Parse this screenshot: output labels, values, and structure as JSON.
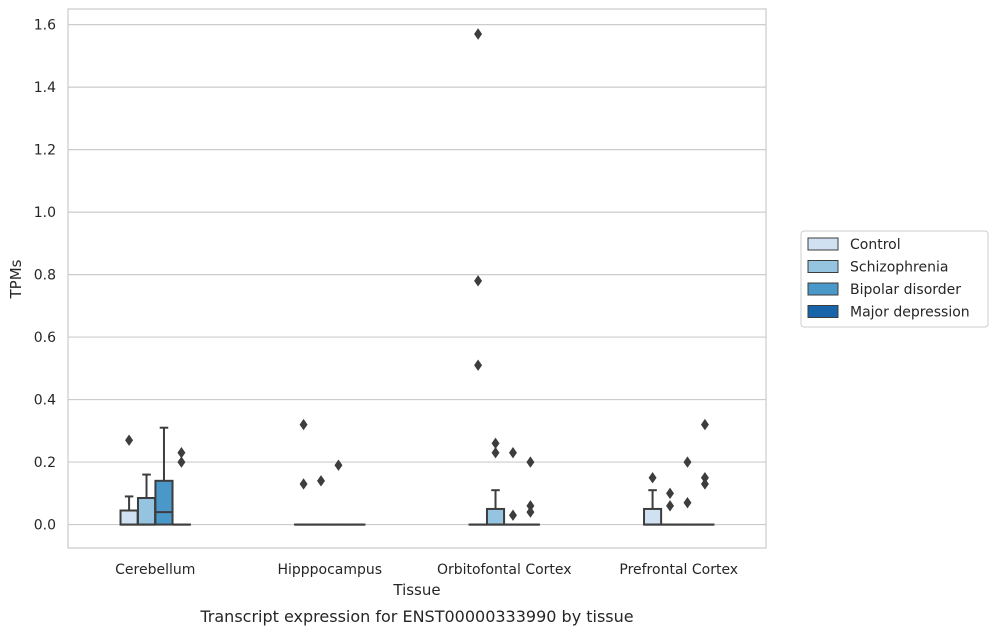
{
  "chart_data": {
    "type": "box",
    "title": "Transcript expression for ENST00000333990 by tissue",
    "xlabel": "Tissue",
    "ylabel": "TPMs",
    "categories": [
      "Cerebellum",
      "Hipppocampus",
      "Orbitofontal Cortex",
      "Prefrontal Cortex"
    ],
    "ylim": [
      -0.075,
      1.65
    ],
    "yticks": [
      0.0,
      0.2,
      0.4,
      0.6,
      0.8,
      1.0,
      1.2,
      1.4,
      1.6
    ],
    "ytick_labels": [
      "0.0",
      "0.2",
      "0.4",
      "0.6",
      "0.8",
      "1.0",
      "1.2",
      "1.4",
      "1.6"
    ],
    "grid": "horizontal",
    "legend_position": "right",
    "series": [
      {
        "name": "Control",
        "color": "#d0e1f2",
        "boxes": [
          {
            "q1": 0.0,
            "median": 0.0,
            "q3": 0.045,
            "whislo": 0.0,
            "whishi": 0.09,
            "fliers": [
              0.27
            ]
          },
          {
            "q1": 0.0,
            "median": 0.0,
            "q3": 0.0,
            "whislo": 0.0,
            "whishi": 0.0,
            "fliers": [
              0.32,
              0.13
            ]
          },
          {
            "q1": 0.0,
            "median": 0.0,
            "q3": 0.0,
            "whislo": 0.0,
            "whishi": 0.0,
            "fliers": [
              1.57,
              0.78,
              0.51
            ]
          },
          {
            "q1": 0.0,
            "median": 0.0,
            "q3": 0.05,
            "whislo": 0.0,
            "whishi": 0.11,
            "fliers": [
              0.15
            ]
          }
        ]
      },
      {
        "name": "Schizophrenia",
        "color": "#94c4df",
        "boxes": [
          {
            "q1": 0.0,
            "median": 0.0,
            "q3": 0.085,
            "whislo": 0.0,
            "whishi": 0.16,
            "fliers": []
          },
          {
            "q1": 0.0,
            "median": 0.0,
            "q3": 0.0,
            "whislo": 0.0,
            "whishi": 0.0,
            "fliers": [
              0.14
            ]
          },
          {
            "q1": 0.0,
            "median": 0.0,
            "q3": 0.05,
            "whislo": 0.0,
            "whishi": 0.11,
            "fliers": [
              0.26,
              0.23
            ]
          },
          {
            "q1": 0.0,
            "median": 0.0,
            "q3": 0.0,
            "whislo": 0.0,
            "whishi": 0.0,
            "fliers": [
              0.1,
              0.06
            ]
          }
        ]
      },
      {
        "name": "Bipolar disorder",
        "color": "#4a98c9",
        "boxes": [
          {
            "q1": 0.0,
            "median": 0.04,
            "q3": 0.14,
            "whislo": 0.0,
            "whishi": 0.31,
            "fliers": []
          },
          {
            "q1": 0.0,
            "median": 0.0,
            "q3": 0.0,
            "whislo": 0.0,
            "whishi": 0.0,
            "fliers": [
              0.19
            ]
          },
          {
            "q1": 0.0,
            "median": 0.0,
            "q3": 0.0,
            "whislo": 0.0,
            "whishi": 0.0,
            "fliers": [
              0.23,
              0.03
            ]
          },
          {
            "q1": 0.0,
            "median": 0.0,
            "q3": 0.0,
            "whislo": 0.0,
            "whishi": 0.0,
            "fliers": [
              0.2,
              0.07
            ]
          }
        ]
      },
      {
        "name": "Major depression",
        "color": "#1764ab",
        "boxes": [
          {
            "q1": 0.0,
            "median": 0.0,
            "q3": 0.0,
            "whislo": 0.0,
            "whishi": 0.0,
            "fliers": [
              0.23,
              0.2
            ]
          },
          {
            "q1": 0.0,
            "median": 0.0,
            "q3": 0.0,
            "whislo": 0.0,
            "whishi": 0.0,
            "fliers": []
          },
          {
            "q1": 0.0,
            "median": 0.0,
            "q3": 0.0,
            "whislo": 0.0,
            "whishi": 0.0,
            "fliers": [
              0.2,
              0.06,
              0.04
            ]
          },
          {
            "q1": 0.0,
            "median": 0.0,
            "q3": 0.0,
            "whislo": 0.0,
            "whishi": 0.0,
            "fliers": [
              0.32,
              0.15,
              0.13
            ]
          }
        ]
      }
    ]
  }
}
